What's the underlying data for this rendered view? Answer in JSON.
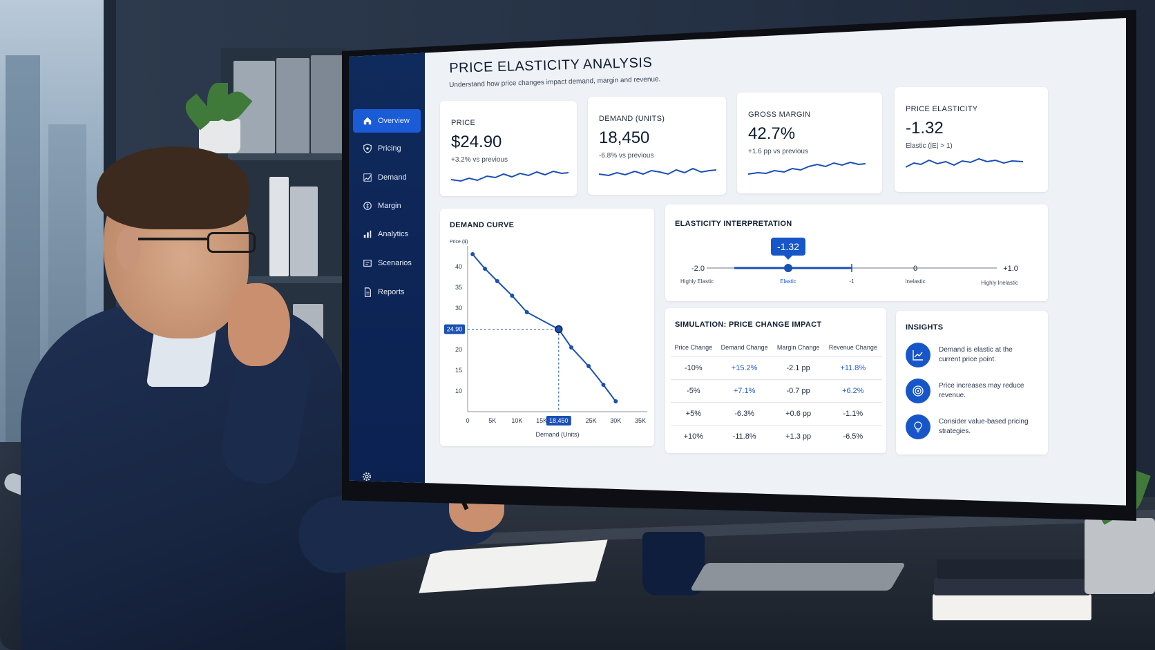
{
  "page": {
    "title": "PRICE ELASTICITY ANALYSIS",
    "subtitle": "Understand how price changes impact demand, margin and revenue."
  },
  "sidebar": {
    "items": [
      {
        "label": "Overview",
        "icon": "home-icon",
        "active": true
      },
      {
        "label": "Pricing",
        "icon": "shield-icon",
        "active": false
      },
      {
        "label": "Demand",
        "icon": "demand-icon",
        "active": false
      },
      {
        "label": "Margin",
        "icon": "margin-icon",
        "active": false
      },
      {
        "label": "Analytics",
        "icon": "bar-chart-icon",
        "active": false
      },
      {
        "label": "Scenarios",
        "icon": "scenarios-icon",
        "active": false
      },
      {
        "label": "Reports",
        "icon": "report-icon",
        "active": false
      }
    ],
    "settings_icon": "gear-icon"
  },
  "kpis": [
    {
      "label": "PRICE",
      "value": "$24.90",
      "delta": "+3.2% vs previous"
    },
    {
      "label": "DEMAND (UNITS)",
      "value": "18,450",
      "delta": "-6.8% vs previous"
    },
    {
      "label": "GROSS MARGIN",
      "value": "42.7%",
      "delta": "+1.6 pp vs previous"
    },
    {
      "label": "PRICE ELASTICITY",
      "value": "-1.32",
      "delta": "Elastic (|E| > 1)"
    }
  ],
  "demand_curve": {
    "title": "DEMAND CURVE",
    "y_axis_title": "Price ($)",
    "x_axis_title": "Demand (Units)",
    "highlight_price": "24.90",
    "highlight_demand": "18,450"
  },
  "chart_data": {
    "type": "line",
    "x": [
      1000,
      3500,
      6000,
      9000,
      12000,
      18450,
      21000,
      24500,
      27500,
      30000
    ],
    "y": [
      43,
      39.5,
      36.5,
      33,
      29,
      24.9,
      20.5,
      16,
      11.5,
      7.5
    ],
    "xlabel": "Demand (Units)",
    "ylabel": "Price ($)",
    "x_ticks": [
      "0",
      "5K",
      "10K",
      "15K",
      "20K",
      "25K",
      "30K",
      "35K"
    ],
    "y_ticks": [
      "10",
      "15",
      "20",
      "25",
      "30",
      "35",
      "40"
    ],
    "xlim": [
      0,
      35000
    ],
    "ylim": [
      5,
      45
    ],
    "highlight": {
      "x": 18450,
      "y": 24.9
    },
    "color": "#1a4fb5"
  },
  "elasticity": {
    "title": "ELASTICITY INTERPRETATION",
    "current": "-1.32",
    "scale": [
      {
        "value": "-2.0",
        "label": "Highly Elastic"
      },
      {
        "value": "",
        "label": "Elastic"
      },
      {
        "value": "",
        "label": "-1"
      },
      {
        "value": "0",
        "label": "Inelastic"
      },
      {
        "value": "+1.0",
        "label": "Highly Inelastic"
      }
    ]
  },
  "simulation": {
    "title": "SIMULATION: PRICE CHANGE IMPACT",
    "headers": [
      "Price Change",
      "Demand Change",
      "Margin Change",
      "Revenue Change"
    ],
    "rows": [
      [
        "-10%",
        "+15.2%",
        "-2.1 pp",
        "+11.8%"
      ],
      [
        "-5%",
        "+7.1%",
        "-0.7 pp",
        "+6.2%"
      ],
      [
        "+5%",
        "-6.3%",
        "+0.6 pp",
        "-1.1%"
      ],
      [
        "+10%",
        "-11.8%",
        "+1.3 pp",
        "-6.5%"
      ]
    ]
  },
  "insights": {
    "title": "INSIGHTS",
    "items": [
      {
        "text": "Demand is elastic at the current price point.",
        "icon": "trend-chart-icon"
      },
      {
        "text": "Price increases may reduce revenue.",
        "icon": "target-icon"
      },
      {
        "text": "Consider value-based pricing strategies.",
        "icon": "lightbulb-icon"
      }
    ]
  },
  "colors": {
    "accent": "#1a5bd6",
    "sidebar": "#0f2a5c",
    "line": "#1a4fb5"
  }
}
